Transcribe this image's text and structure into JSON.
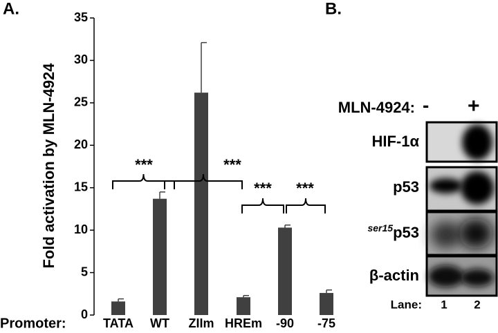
{
  "chart_data": {
    "type": "bar",
    "panel_label": "A.",
    "y_label": "Fold activation by MLN-4924",
    "x_label": "Promoter:",
    "categories": [
      "TATA",
      "WT",
      "ZIIm",
      "HREm",
      "-90",
      "-75"
    ],
    "values": [
      1.6,
      13.7,
      26.2,
      2.1,
      10.3,
      2.6
    ],
    "errors": [
      0.3,
      0.8,
      5.9,
      0.2,
      0.3,
      0.35
    ],
    "color": "#404040",
    "ylim": [
      0,
      35
    ],
    "yticks": [
      0,
      5,
      10,
      15,
      20,
      25,
      30,
      35
    ],
    "annotations": [
      "***",
      "***",
      "***",
      "***"
    ]
  },
  "panel_b": {
    "panel_label": "B.",
    "treatment": "MLN-4924:",
    "minus": "-",
    "plus": "+",
    "rows": [
      {
        "label": "HIF-1α"
      },
      {
        "label": "p53"
      },
      {
        "prefix": "ser15",
        "label": "p53"
      },
      {
        "label": "β-actin"
      }
    ],
    "lane_label": "Lane:",
    "lanes": [
      "1",
      "2"
    ]
  }
}
